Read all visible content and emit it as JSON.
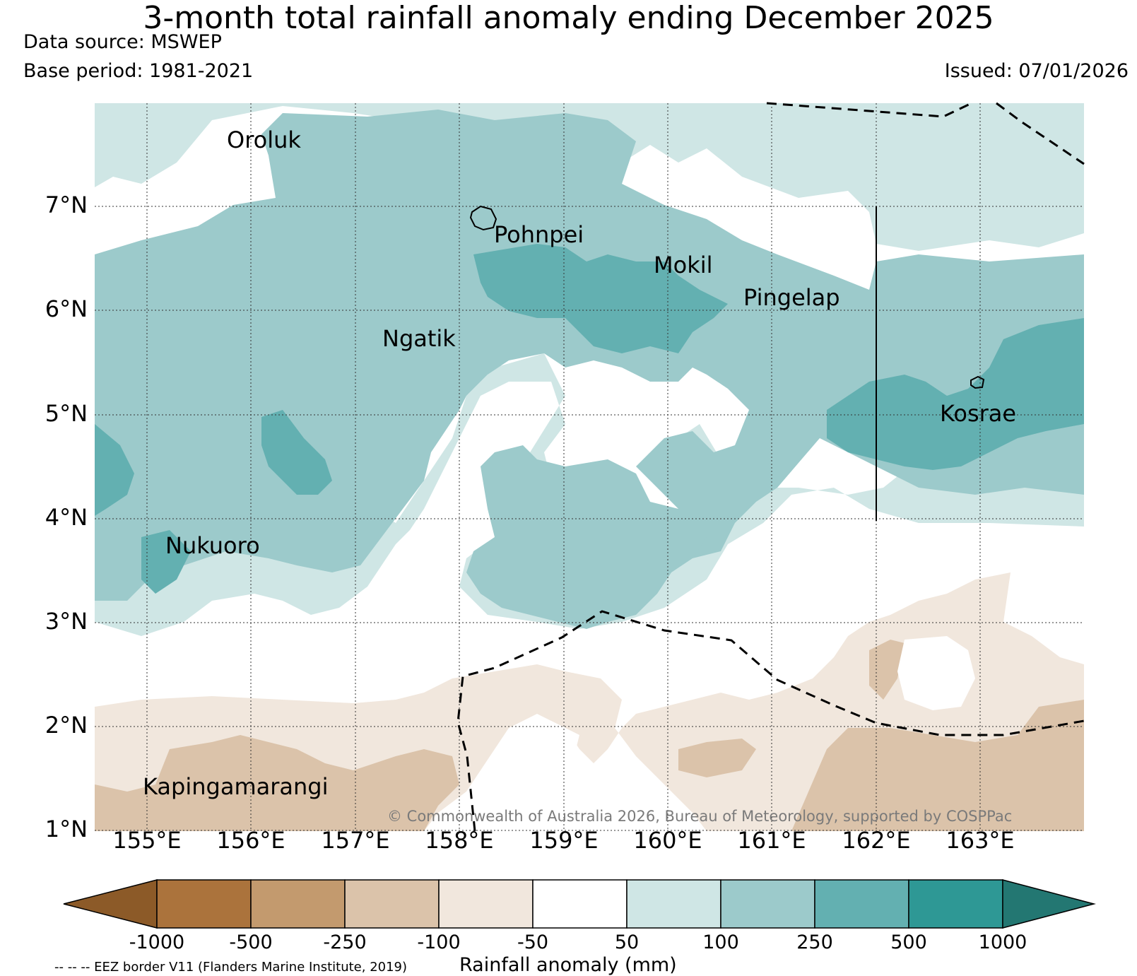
{
  "title": "3-month total rainfall anomaly ending December 2025",
  "data_source": "Data source: MSWEP",
  "base_period": "Base period: 1981-2021",
  "issued": "Issued: 07/01/2026",
  "copyright": "© Commonwealth of Australia 2026, Bureau of Meteorology, supported by COSPPac",
  "eez_note": "-- -- -- EEZ border V11 (Flanders Marine Institute, 2019)",
  "colorbar_title": "Rainfall anomaly (mm)",
  "map": {
    "lon_range": [
      154.5,
      164.0
    ],
    "lat_range": [
      1.0,
      8.0
    ],
    "lat_ticks": [
      {
        "value": 7,
        "label": "7°N"
      },
      {
        "value": 6,
        "label": "6°N"
      },
      {
        "value": 5,
        "label": "5°N"
      },
      {
        "value": 4,
        "label": "4°N"
      },
      {
        "value": 3,
        "label": "3°N"
      },
      {
        "value": 2,
        "label": "2°N"
      },
      {
        "value": 1,
        "label": "1°N"
      }
    ],
    "lon_ticks": [
      {
        "value": 155,
        "label": "155°E"
      },
      {
        "value": 156,
        "label": "156°E"
      },
      {
        "value": 157,
        "label": "157°E"
      },
      {
        "value": 158,
        "label": "158°E"
      },
      {
        "value": 159,
        "label": "159°E"
      },
      {
        "value": 160,
        "label": "160°E"
      },
      {
        "value": 161,
        "label": "161°E"
      },
      {
        "value": 162,
        "label": "162°E"
      },
      {
        "value": 163,
        "label": "163°E"
      }
    ],
    "places": [
      {
        "name": "Oroluk",
        "lon": 155.75,
        "lat": 7.62
      },
      {
        "name": "Pohnpei",
        "lon": 158.33,
        "lat": 6.72
      },
      {
        "name": "Mokil",
        "lon": 159.77,
        "lat": 6.42
      },
      {
        "name": "Pingelap",
        "lon": 160.72,
        "lat": 6.1
      },
      {
        "name": "Ngatik",
        "lon": 157.25,
        "lat": 5.73
      },
      {
        "name": "Kosrae",
        "lon": 162.98,
        "lat": 4.98
      },
      {
        "name": "Nukuoro",
        "lon": 155.18,
        "lat": 3.75
      },
      {
        "name": "Kapingamarangi",
        "lon": 154.95,
        "lat": 1.45
      }
    ]
  },
  "legend": {
    "bounds": [
      "-1000",
      "-500",
      "-250",
      "-100",
      "-50",
      "50",
      "100",
      "250",
      "500",
      "1000"
    ],
    "colors": [
      "#8c5a28",
      "#ab733c",
      "#c39a6e",
      "#dbc3aa",
      "#f1e7dd",
      "#ffffff",
      "#cfe6e5",
      "#9ccacb",
      "#63b0b1",
      "#2e9895",
      "#237772"
    ]
  }
}
